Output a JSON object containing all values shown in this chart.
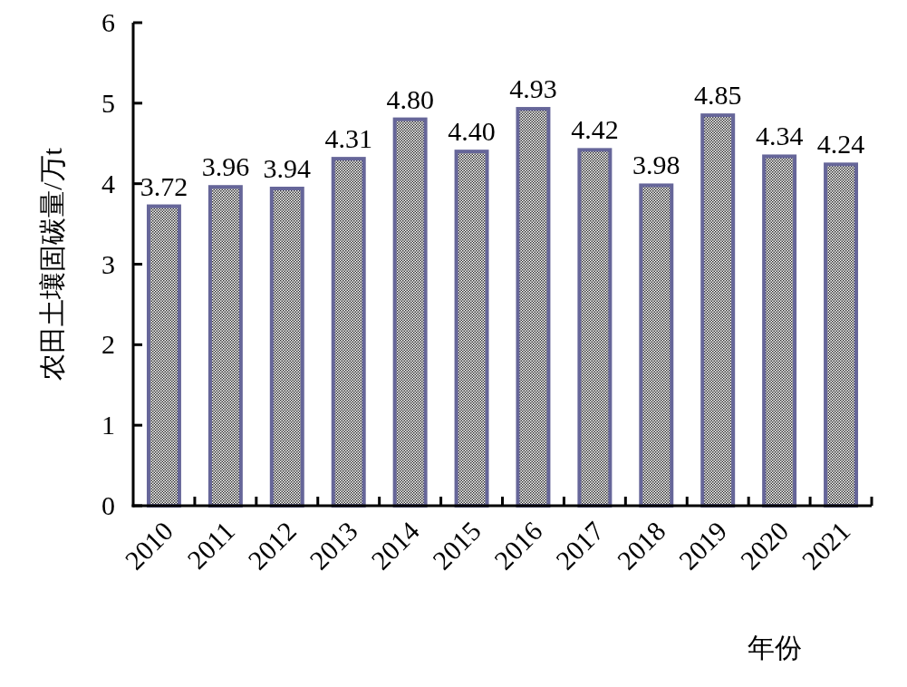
{
  "chart_data": {
    "type": "bar",
    "xlabel": "年份",
    "ylabel": "农田土壤固碳量/万t",
    "categories": [
      "2010",
      "2011",
      "2012",
      "2013",
      "2014",
      "2015",
      "2016",
      "2017",
      "2018",
      "2019",
      "2020",
      "2021"
    ],
    "values": [
      3.72,
      3.96,
      3.94,
      4.31,
      4.8,
      4.4,
      4.93,
      4.42,
      3.98,
      4.85,
      4.34,
      4.24
    ],
    "value_labels": [
      "3.72",
      "3.96",
      "3.94",
      "4.31",
      "4.80",
      "4.40",
      "4.93",
      "4.42",
      "3.98",
      "4.85",
      "4.34",
      "4.24"
    ],
    "color": "#666699",
    "ylim": [
      0,
      6
    ],
    "yticks": [
      0,
      1,
      2,
      3,
      4,
      5,
      6
    ],
    "grid": false
  }
}
